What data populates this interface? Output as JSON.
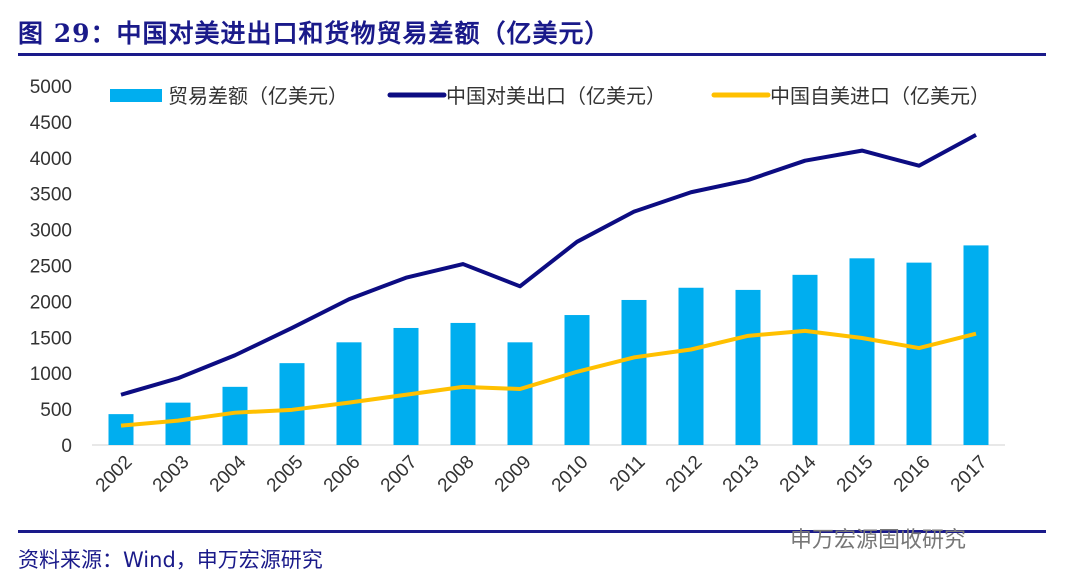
{
  "title": "图 29：中国对美进出口和货物贸易差额（亿美元）",
  "source": "资料来源：Wind，申万宏源研究",
  "watermark": "申万宏源固收研究",
  "colors": {
    "bar": "#00aeef",
    "export": "#0c0c82",
    "import": "#ffc000",
    "title": "#1a1a8a"
  },
  "chart_data": {
    "type": "bar",
    "title": "",
    "xlabel": "",
    "ylabel": "",
    "ylim": [
      0,
      5000
    ],
    "yticks": [
      0,
      500,
      1000,
      1500,
      2000,
      2500,
      3000,
      3500,
      4000,
      4500,
      5000
    ],
    "grid": false,
    "legend_position": "top",
    "categories": [
      "2002",
      "2003",
      "2004",
      "2005",
      "2006",
      "2007",
      "2008",
      "2009",
      "2010",
      "2011",
      "2012",
      "2013",
      "2014",
      "2015",
      "2016",
      "2017"
    ],
    "series": [
      {
        "name": "贸易差额（亿美元）",
        "type": "bar",
        "values": [
          430,
          590,
          810,
          1140,
          1430,
          1630,
          1700,
          1430,
          1810,
          2020,
          2190,
          2160,
          2370,
          2600,
          2540,
          2780
        ]
      },
      {
        "name": "中国对美出口（亿美元）",
        "type": "line",
        "values": [
          700,
          930,
          1250,
          1630,
          2030,
          2330,
          2520,
          2210,
          2830,
          3250,
          3520,
          3690,
          3960,
          4100,
          3890,
          4320
        ]
      },
      {
        "name": "中国自美进口（亿美元）",
        "type": "line",
        "values": [
          270,
          340,
          450,
          490,
          590,
          700,
          810,
          780,
          1020,
          1220,
          1330,
          1520,
          1590,
          1490,
          1350,
          1550
        ]
      }
    ]
  }
}
